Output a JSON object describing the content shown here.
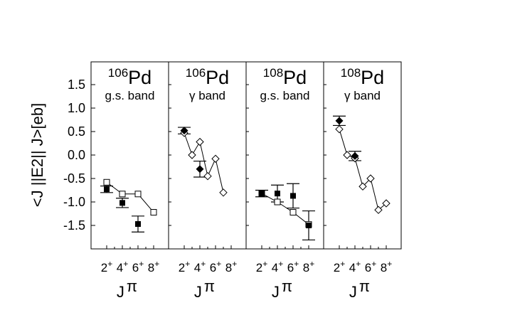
{
  "chart_data": {
    "type": "scatter",
    "ylabel": "<J ||E2|| J>[eb]",
    "ylim": [
      -2.0,
      2.0
    ],
    "yticks": [
      "1.5",
      "1.0",
      "0.5",
      "0.0",
      "-0.5",
      "-1.0",
      "-1.5"
    ],
    "panels": [
      {
        "nucleus": "106",
        "element": "Pd",
        "band": "g.s. band",
        "xlabel": "J",
        "xlabel_sup": "π",
        "x_ticks": [
          "2",
          "4",
          "6",
          "8"
        ],
        "x_tick_sup": "+",
        "calc_marker": "square",
        "exp_marker": "square",
        "calc": [
          {
            "x": 2,
            "y": -0.58
          },
          {
            "x": 4,
            "y": -0.83
          },
          {
            "x": 6,
            "y": -0.83
          },
          {
            "x": 8,
            "y": -1.22
          }
        ],
        "exp": [
          {
            "x": 2,
            "y": -0.73,
            "err": 0.07
          },
          {
            "x": 4,
            "y": -1.02,
            "err": 0.1
          },
          {
            "x": 6,
            "y": -1.47,
            "err": 0.17
          }
        ]
      },
      {
        "nucleus": "106",
        "element": "Pd",
        "band": "γ band",
        "xlabel": "J",
        "xlabel_sup": "π",
        "x_ticks": [
          "2",
          "4",
          "6",
          "8"
        ],
        "x_tick_sup": "+",
        "calc_marker": "diamond",
        "exp_marker": "diamond",
        "calc": [
          {
            "x": 2,
            "y": 0.47
          },
          {
            "x": 3,
            "y": 0.0
          },
          {
            "x": 4,
            "y": 0.28
          },
          {
            "x": 5,
            "y": -0.45
          },
          {
            "x": 6,
            "y": -0.08
          },
          {
            "x": 7,
            "y": -0.8
          }
        ],
        "exp": [
          {
            "x": 2,
            "y": 0.52,
            "err": 0.07
          },
          {
            "x": 4,
            "y": -0.3,
            "err": 0.17
          }
        ]
      },
      {
        "nucleus": "108",
        "element": "Pd",
        "band": "g.s. band",
        "xlabel": "J",
        "xlabel_sup": "π",
        "x_ticks": [
          "2",
          "4",
          "6",
          "8"
        ],
        "x_tick_sup": "+",
        "calc_marker": "square",
        "exp_marker": "square",
        "calc": [
          {
            "x": 2,
            "y": -0.82
          },
          {
            "x": 4,
            "y": -1.0
          },
          {
            "x": 6,
            "y": -1.22
          },
          {
            "x": 8,
            "y": -1.48
          }
        ],
        "exp": [
          {
            "x": 2,
            "y": -0.82,
            "err": 0.07
          },
          {
            "x": 4,
            "y": -0.82,
            "err": 0.18
          },
          {
            "x": 6,
            "y": -0.87,
            "err": 0.26
          },
          {
            "x": 8,
            "y": -1.5,
            "err": 0.31
          }
        ]
      },
      {
        "nucleus": "108",
        "element": "Pd",
        "band": "γ band",
        "xlabel": "J",
        "xlabel_sup": "π",
        "x_ticks": [
          "2",
          "4",
          "6",
          "8"
        ],
        "x_tick_sup": "+",
        "calc_marker": "diamond",
        "exp_marker": "diamond",
        "calc": [
          {
            "x": 2,
            "y": 0.55
          },
          {
            "x": 3,
            "y": 0.0
          },
          {
            "x": 4,
            "y": -0.07
          },
          {
            "x": 5,
            "y": -0.67
          },
          {
            "x": 6,
            "y": -0.5
          },
          {
            "x": 7,
            "y": -1.17
          },
          {
            "x": 8,
            "y": -1.03
          }
        ],
        "exp": [
          {
            "x": 2,
            "y": 0.73,
            "err": 0.1
          },
          {
            "x": 4,
            "y": -0.02,
            "err": 0.1
          }
        ]
      }
    ]
  }
}
